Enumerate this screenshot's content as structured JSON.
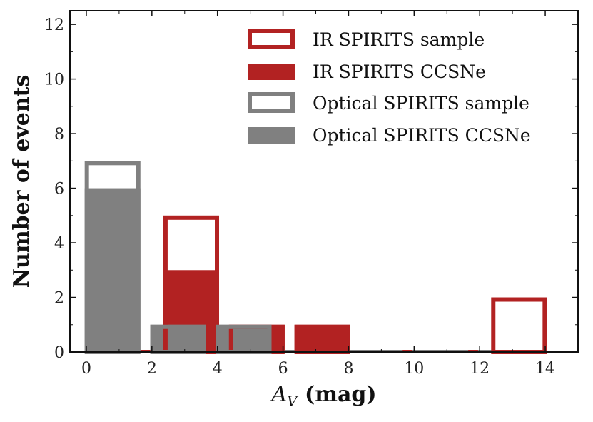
{
  "chart_data": {
    "type": "bar",
    "xlabel_var": "A",
    "xlabel_sub": "V",
    "xlabel_unit": " (mag)",
    "ylabel": "Number of events",
    "xlim": [
      -0.5,
      15
    ],
    "ylim": [
      0,
      12.5
    ],
    "xticks": [
      0,
      2,
      4,
      6,
      8,
      10,
      12,
      14
    ],
    "yticks": [
      0,
      2,
      4,
      6,
      8,
      10,
      12
    ],
    "bin_edges": [
      0,
      2,
      4,
      6,
      8,
      10,
      12,
      14
    ],
    "colors": {
      "ir": "#b22222",
      "optical": "#808080"
    },
    "series": [
      {
        "name": "IR SPIRITS sample",
        "style": "outline",
        "color_key": "ir",
        "values": [
          0,
          5,
          1,
          1,
          0,
          0,
          2
        ],
        "offset": 0.2
      },
      {
        "name": "IR SPIRITS CCSNe",
        "style": "filled",
        "color_key": "ir",
        "values": [
          0,
          3,
          1,
          1,
          0,
          0,
          0
        ],
        "offset": 0.2
      },
      {
        "name": "Optical SPIRITS sample",
        "style": "outline",
        "color_key": "optical",
        "values": [
          7,
          1,
          1,
          0,
          0,
          0,
          0
        ],
        "offset": -0.2
      },
      {
        "name": "Optical SPIRITS CCSNe",
        "style": "filled",
        "color_key": "optical",
        "values": [
          6,
          1,
          1,
          0,
          0,
          0,
          0
        ],
        "offset": -0.2
      }
    ]
  }
}
